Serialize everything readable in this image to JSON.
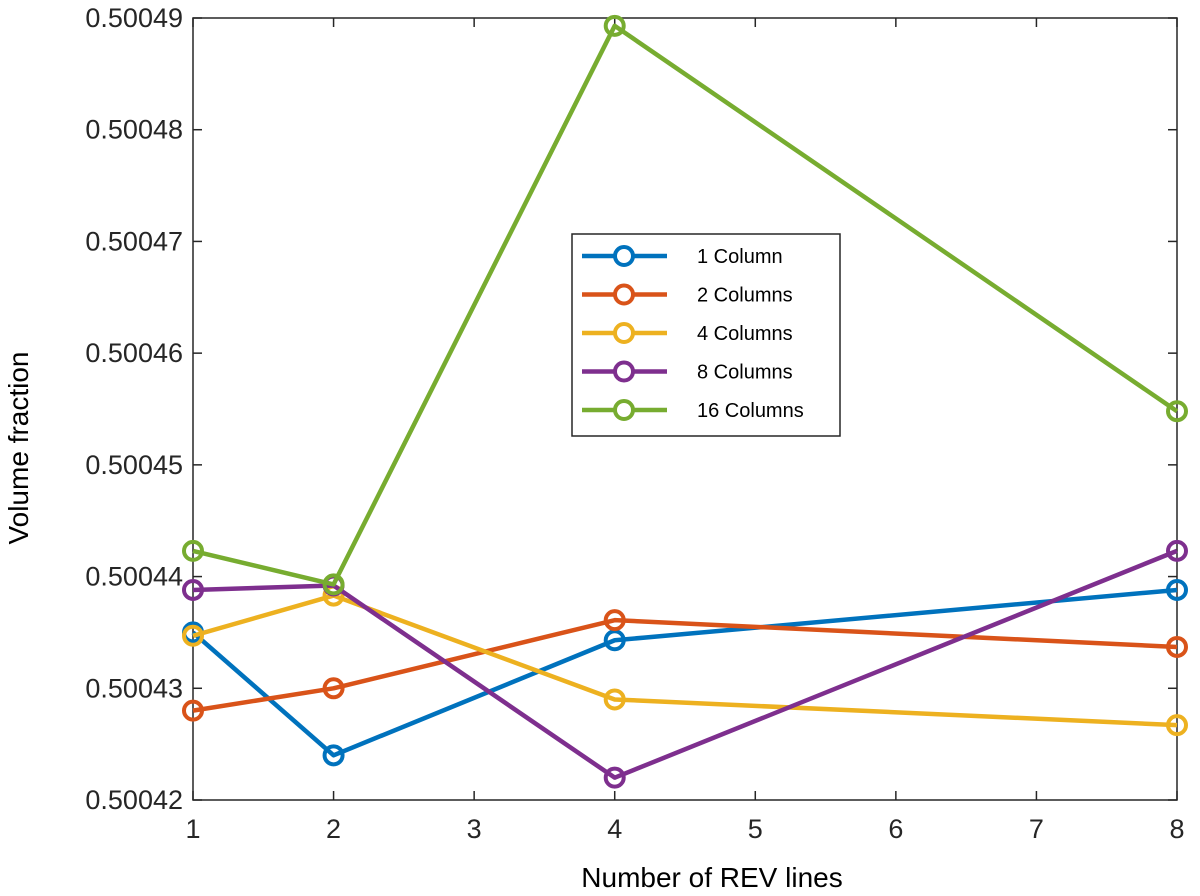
{
  "chart_data": {
    "type": "line",
    "title": "",
    "xlabel": "Number of REV lines",
    "ylabel": "Volume fraction",
    "xlim": [
      1,
      8
    ],
    "ylim": [
      0.50042,
      0.50049
    ],
    "x_tick_labels": [
      "1",
      "2",
      "3",
      "4",
      "5",
      "6",
      "7",
      "8"
    ],
    "y_tick_labels": [
      "0.50042",
      "0.50043",
      "0.50044",
      "0.50045",
      "0.50046",
      "0.50047",
      "0.50048",
      "0.50049"
    ],
    "x_categories": [
      "1",
      "2",
      "4",
      "8"
    ],
    "grid": false,
    "legend_position": "center",
    "series": [
      {
        "name": "1  Column",
        "color": "#0072BD",
        "values": [
          0.500435,
          0.500424,
          0.5004343,
          0.5004388
        ]
      },
      {
        "name": "2  Columns",
        "color": "#D95319",
        "values": [
          0.500428,
          0.50043,
          0.5004361,
          0.5004337
        ]
      },
      {
        "name": "4  Columns",
        "color": "#EDB120",
        "values": [
          0.5004347,
          0.5004383,
          0.500429,
          0.5004267
        ]
      },
      {
        "name": "8  Columns",
        "color": "#7E2F8E",
        "values": [
          0.5004388,
          0.5004392,
          0.500422,
          0.5004423
        ]
      },
      {
        "name": "16 Columns",
        "color": "#77AC30",
        "values": [
          0.5004423,
          0.5004393,
          0.5004893,
          0.5004548
        ]
      }
    ]
  }
}
